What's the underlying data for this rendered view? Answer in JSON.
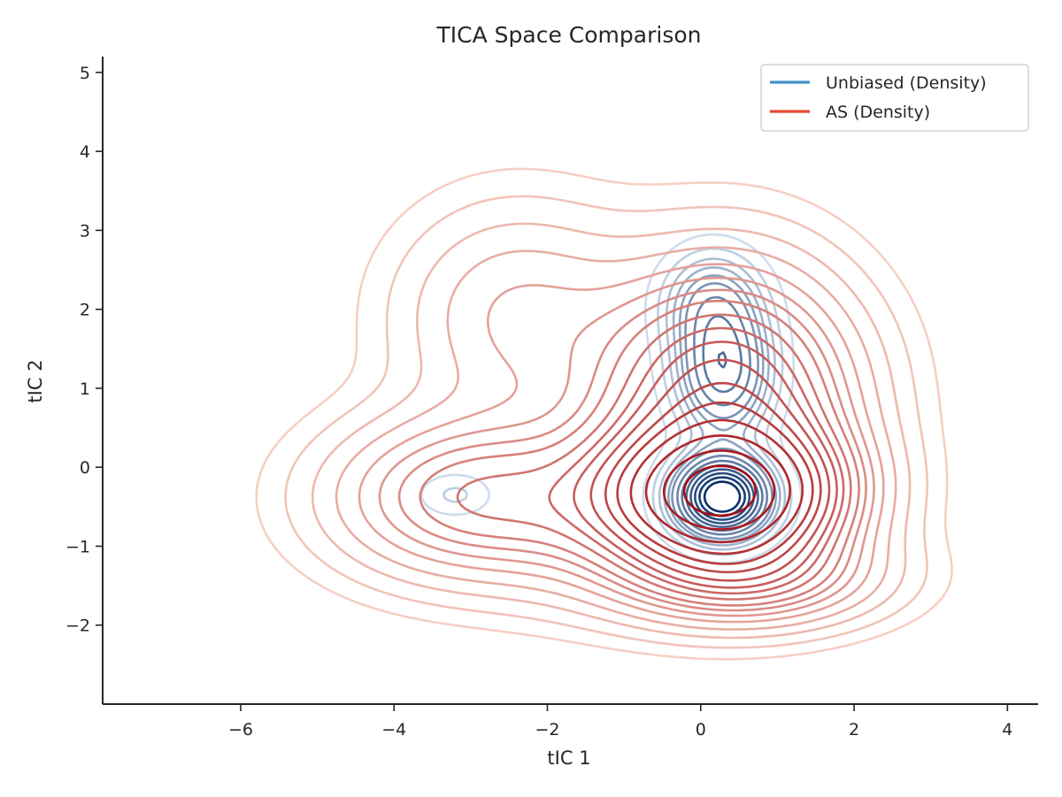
{
  "chart_data": {
    "type": "contour",
    "title": "TICA Space Comparison",
    "xlabel": "tIC 1",
    "ylabel": "tIC 2",
    "xlim": [
      -7.8,
      4.4
    ],
    "ylim": [
      -3.0,
      5.2
    ],
    "x_ticks": [
      -6,
      -4,
      -2,
      0,
      2,
      4
    ],
    "x_tick_labels": [
      "−6",
      "−4",
      "−2",
      "0",
      "2",
      "4"
    ],
    "y_ticks": [
      -2,
      -1,
      0,
      1,
      2,
      3,
      4,
      5
    ],
    "y_tick_labels": [
      "−2",
      "−1",
      "0",
      "1",
      "2",
      "3",
      "4",
      "5"
    ],
    "grid": false,
    "legend_position": "top-right",
    "series": [
      {
        "name": "Unbiased (Density)",
        "kind": "kde_contour",
        "legend_color": "#4292c6",
        "color_light": "#deebf7",
        "color_dark": "#08306b",
        "components": [
          {
            "weight": 0.9,
            "mean": [
              0.28,
              -0.38
            ],
            "sd": [
              0.42,
              0.34
            ]
          },
          {
            "weight": 0.45,
            "mean": [
              0.3,
              1.2
            ],
            "sd": [
              0.42,
              0.55
            ]
          },
          {
            "weight": 0.25,
            "mean": [
              0.15,
              2.1
            ],
            "sd": [
              0.45,
              0.45
            ]
          },
          {
            "weight": 0.1,
            "mean": [
              -3.2,
              -0.35
            ],
            "sd": [
              0.35,
              0.2
            ]
          }
        ],
        "levels": [
          0.05,
          0.1,
          0.15,
          0.2,
          0.25,
          0.3,
          0.38,
          0.46,
          0.54,
          0.62,
          0.7,
          0.78,
          0.86
        ]
      },
      {
        "name": "AS (Density)",
        "kind": "kde_contour",
        "legend_color": "#e34a33",
        "color_light": "#fee0d2",
        "color_dark": "#a50f15",
        "components": [
          {
            "weight": 1.0,
            "mean": [
              0.3,
              -0.38
            ],
            "sd": [
              0.95,
              0.55
            ]
          },
          {
            "weight": 0.55,
            "mean": [
              0.3,
              0.8
            ],
            "sd": [
              1.05,
              1.05
            ]
          },
          {
            "weight": 0.28,
            "mean": [
              -3.05,
              -0.38
            ],
            "sd": [
              1.15,
              0.65
            ]
          },
          {
            "weight": 0.14,
            "mean": [
              -2.4,
              1.9
            ],
            "sd": [
              1.0,
              0.9
            ]
          },
          {
            "weight": 0.26,
            "mean": [
              0.6,
              -1.4
            ],
            "sd": [
              1.1,
              0.4
            ]
          },
          {
            "weight": 0.12,
            "mean": [
              -1.3,
              -0.6
            ],
            "sd": [
              1.1,
              0.7
            ]
          }
        ],
        "levels": [
          0.012,
          0.025,
          0.045,
          0.07,
          0.1,
          0.13,
          0.16,
          0.19,
          0.23,
          0.27,
          0.31,
          0.36,
          0.42,
          0.48,
          0.56,
          0.66,
          0.78,
          0.9
        ]
      }
    ]
  }
}
